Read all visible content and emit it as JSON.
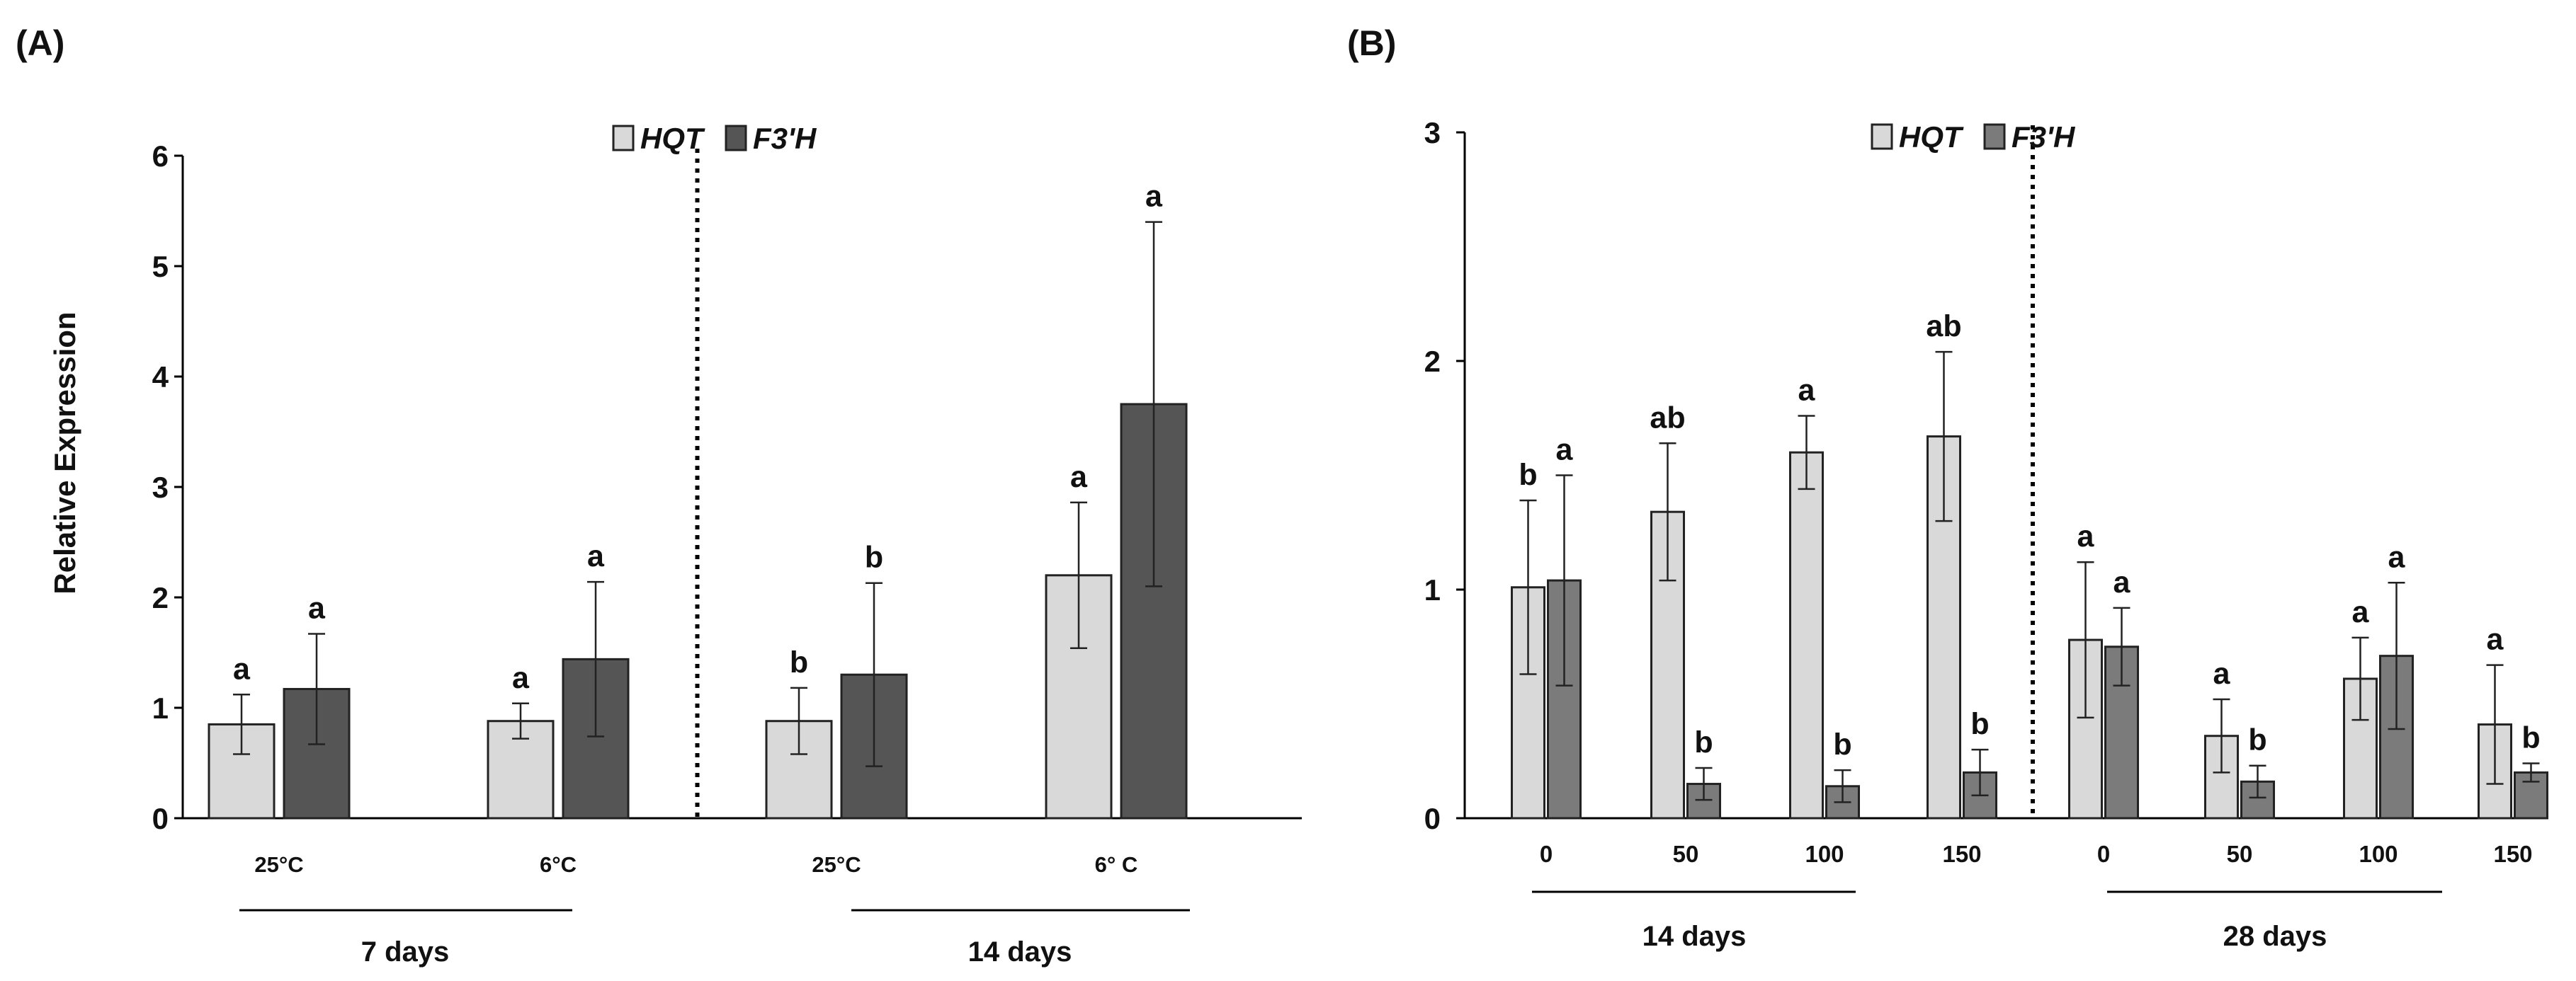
{
  "colors": {
    "hqt": "#d9d9d9",
    "f3h_a": "#555555",
    "f3h_b": "#7b7b7b",
    "axis": "#000000",
    "divider": "#000000"
  },
  "chart_data": [
    {
      "panel_label": "(A)",
      "type": "bar",
      "ylabel": "Relative Expression",
      "ylim": [
        0,
        6
      ],
      "yticks": [
        0,
        1,
        2,
        3,
        4,
        5,
        6
      ],
      "categories": [
        "25°C",
        "6°C",
        "25°C",
        "6° C"
      ],
      "groups": [
        {
          "label": "7 days",
          "categories": [
            0,
            1
          ]
        },
        {
          "label": "14 days",
          "categories": [
            2,
            3
          ]
        }
      ],
      "divider_after_category": 1,
      "legend": [
        {
          "key": "hqt",
          "label": "HQT"
        },
        {
          "key": "f3h",
          "label": "F3'H"
        }
      ],
      "series": [
        {
          "name": "HQT",
          "values": [
            0.85,
            0.88,
            0.88,
            2.2
          ],
          "errors": [
            0.27,
            0.16,
            0.3,
            0.66
          ],
          "letters": [
            "a",
            "a",
            "b",
            "a"
          ]
        },
        {
          "name": "F3'H",
          "values": [
            1.17,
            1.44,
            1.3,
            3.75
          ],
          "errors": [
            0.5,
            0.7,
            0.83,
            1.65
          ],
          "letters": [
            "a",
            "a",
            "b",
            "a"
          ]
        }
      ]
    },
    {
      "panel_label": "(B)",
      "type": "bar",
      "ylabel": "",
      "ylim": [
        0,
        3
      ],
      "yticks": [
        0,
        1,
        2,
        3
      ],
      "categories": [
        "0",
        "50",
        "100",
        "150",
        "0",
        "50",
        "100",
        "150"
      ],
      "groups": [
        {
          "label": "14 days",
          "categories": [
            0,
            3
          ]
        },
        {
          "label": "28 days",
          "categories": [
            4,
            7
          ]
        }
      ],
      "divider_after_category": 3,
      "legend": [
        {
          "key": "hqt",
          "label": "HQT"
        },
        {
          "key": "f3h",
          "label": "F3'H"
        }
      ],
      "series": [
        {
          "name": "HQT",
          "values": [
            1.01,
            1.34,
            1.6,
            1.67,
            0.78,
            0.36,
            0.61,
            0.41
          ],
          "errors": [
            0.38,
            0.3,
            0.16,
            0.37,
            0.34,
            0.16,
            0.18,
            0.26
          ],
          "letters": [
            "b",
            "ab",
            "a",
            "ab",
            "a",
            "a",
            "a",
            "a"
          ]
        },
        {
          "name": "F3'H",
          "values": [
            1.04,
            0.15,
            0.14,
            0.2,
            0.75,
            0.16,
            0.71,
            0.2
          ],
          "errors": [
            0.46,
            0.07,
            0.07,
            0.1,
            0.17,
            0.07,
            0.32,
            0.04
          ],
          "letters": [
            "a",
            "b",
            "b",
            "b",
            "a",
            "b",
            "a",
            "b"
          ]
        }
      ]
    }
  ]
}
